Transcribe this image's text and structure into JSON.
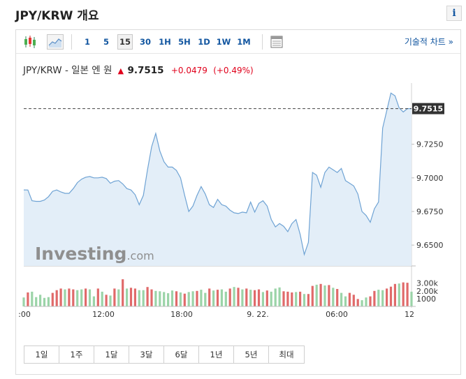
{
  "title": "JPY/KRW 개요",
  "info_icon": "i",
  "toolbar": {
    "candle_icon": "candlestick-icon",
    "area_icon": "area-chart-icon",
    "timeframes": [
      "1",
      "5",
      "15",
      "30",
      "1H",
      "5H",
      "1D",
      "1W",
      "1M"
    ],
    "active_timeframe": "15",
    "table_icon": "data-table-icon",
    "tech_chart_label": "기술적 차트 »"
  },
  "quote": {
    "symbol": "JPY/KRW - 일본 엔 원",
    "arrow": "▲",
    "price": "9.7515",
    "change": "+0.0479",
    "change_pct": "(+0.49%)"
  },
  "ranges": [
    "1일",
    "1주",
    "1달",
    "3달",
    "6달",
    "1년",
    "5년",
    "최대"
  ],
  "colors": {
    "line": "#6fa3d4",
    "area": "#e3eef8",
    "vol_up": "#9bd4a8",
    "vol_down": "#e06a6a",
    "link": "#1256a0",
    "down_red": "#e0001b"
  },
  "chart_data": {
    "type": "area",
    "x_ticks": [
      ":00",
      "12:00",
      "18:00",
      "9. 22.",
      "06:00",
      "12"
    ],
    "y_ticks": [
      "9.7250",
      "9.7000",
      "9.6750",
      "9.6500"
    ],
    "y_tick_values": [
      9.725,
      9.7,
      9.675,
      9.65
    ],
    "ylim": [
      9.6345,
      9.7705
    ],
    "last_price_label": "9.7515",
    "last_price": 9.7515,
    "watermark": "Investing.com",
    "price_values": [
      9.691,
      9.691,
      9.683,
      9.6825,
      9.6825,
      9.6835,
      9.686,
      9.69,
      9.691,
      9.6895,
      9.6885,
      9.6885,
      9.692,
      9.6965,
      9.699,
      9.7005,
      9.701,
      9.7,
      9.7,
      9.7005,
      9.6995,
      9.696,
      9.6975,
      9.698,
      9.6955,
      9.692,
      9.691,
      9.6875,
      9.68,
      9.687,
      9.706,
      9.723,
      9.733,
      9.72,
      9.712,
      9.708,
      9.708,
      9.7055,
      9.7,
      9.687,
      9.675,
      9.679,
      9.687,
      9.6935,
      9.688,
      9.68,
      9.678,
      9.684,
      9.68,
      9.679,
      9.676,
      9.674,
      9.6735,
      9.6745,
      9.674,
      9.682,
      9.6745,
      9.681,
      9.683,
      9.679,
      9.669,
      9.6635,
      9.666,
      9.664,
      9.66,
      9.666,
      9.669,
      9.658,
      9.643,
      9.652,
      9.704,
      9.702,
      9.693,
      9.704,
      9.708,
      9.706,
      9.704,
      9.707,
      9.698,
      9.696,
      9.694,
      9.688,
      9.675,
      9.672,
      9.667,
      9.677,
      9.682,
      9.737,
      9.75,
      9.763,
      9.761,
      9.752,
      9.749,
      9.7515,
      9.7515
    ],
    "volume_ticks": [
      "3.00k",
      "2.00k",
      "1000"
    ],
    "volume_tick_values": [
      3000,
      2000,
      1000
    ],
    "volume_values": [
      1150,
      1800,
      1900,
      1200,
      1500,
      1100,
      1200,
      1750,
      2100,
      2300,
      2200,
      2300,
      2200,
      2100,
      2200,
      2300,
      2200,
      1300,
      2300,
      1900,
      1500,
      1400,
      2300,
      2200,
      3500,
      2300,
      2400,
      2300,
      2100,
      2100,
      2500,
      2200,
      2000,
      1950,
      1850,
      1700,
      2050,
      1950,
      1800,
      1650,
      1850,
      1950,
      2000,
      2150,
      1750,
      2300,
      2050,
      2150,
      2200,
      1900,
      2300,
      2500,
      2400,
      2200,
      2300,
      2150,
      2100,
      2200,
      1850,
      2050,
      1900,
      2300,
      2450,
      1950,
      1900,
      1800,
      1850,
      1900,
      1600,
      1600,
      2650,
      2800,
      2900,
      2700,
      2750,
      2400,
      2250,
      1750,
      1300,
      1750,
      1500,
      950,
      800,
      1150,
      1300,
      2000,
      2150,
      2100,
      2300,
      2550,
      2900,
      2950,
      3100,
      3050,
      1900
    ],
    "volume_up": [
      1,
      0,
      1,
      1,
      1,
      1,
      1,
      0,
      0,
      0,
      1,
      0,
      0,
      1,
      1,
      0,
      1,
      1,
      0,
      1,
      0,
      1,
      0,
      1,
      0,
      1,
      0,
      0,
      1,
      1,
      0,
      0,
      1,
      1,
      1,
      1,
      1,
      0,
      1,
      0,
      1,
      1,
      0,
      1,
      1,
      0,
      1,
      0,
      1,
      1,
      0,
      1,
      0,
      1,
      0,
      1,
      0,
      0,
      1,
      0,
      1,
      1,
      1,
      0,
      0,
      0,
      1,
      0,
      1,
      0,
      0,
      1,
      0,
      1,
      0,
      1,
      0,
      1,
      1,
      0,
      0,
      0,
      1,
      1,
      0,
      0,
      1,
      1,
      0,
      0,
      0,
      1,
      0,
      0,
      1
    ]
  }
}
